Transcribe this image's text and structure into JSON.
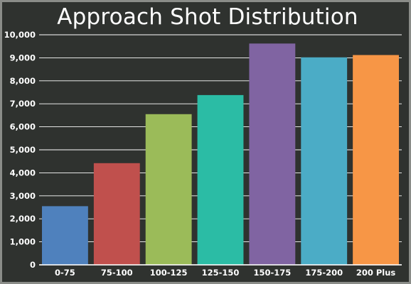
{
  "chart_data": {
    "type": "bar",
    "title": "Approach Shot Distribution",
    "xlabel": "",
    "ylabel": "",
    "categories": [
      "0-75",
      "75-100",
      "100-125",
      "125-150",
      "150-175",
      "175-200",
      "200 Plus"
    ],
    "values": [
      2550,
      4420,
      6550,
      7380,
      9620,
      9020,
      9120
    ],
    "bar_colors": [
      "#4f81bd",
      "#c0504d",
      "#9bbb59",
      "#2bbca5",
      "#8064a2",
      "#4bacc6",
      "#f79646"
    ],
    "ylim": [
      0,
      10000
    ],
    "yticks": [
      0,
      1000,
      2000,
      3000,
      4000,
      5000,
      6000,
      7000,
      8000,
      9000,
      10000
    ],
    "ytick_labels": [
      "0",
      "1,000",
      "2,000",
      "3,000",
      "4,000",
      "5,000",
      "6,000",
      "7,000",
      "8,000",
      "9,000",
      "10,000"
    ],
    "grid": true,
    "legend": "none",
    "background_color": "#2f322f",
    "grid_color": "#ffffff",
    "text_color": "#ffffff"
  }
}
